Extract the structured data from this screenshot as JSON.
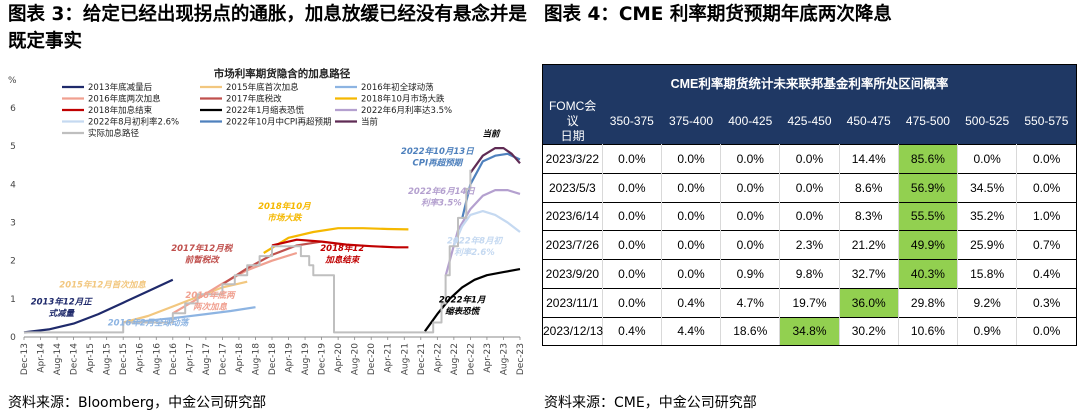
{
  "left_title": "图表 3：给定已经出现拐点的通胀，加息放缓已经没有悬念并是既定事实",
  "right_title": "图表 4：CME 利率期货预期年底两次降息",
  "left_source": "资料来源：Bloomberg，中金公司研究部",
  "right_source": "资料来源：CME，中金公司研究部",
  "chart_data": [
    {
      "type": "line",
      "title": "市场利率期货隐含的加息路径",
      "ylabel": "%",
      "ylim": [
        0,
        6
      ],
      "yticks": [
        0,
        1,
        2,
        3,
        4,
        5,
        6
      ],
      "xlim": [
        "2013-12",
        "2023-12"
      ],
      "xticks": [
        "Dec-13",
        "Apr-14",
        "Aug-14",
        "Dec-14",
        "Apr-15",
        "Aug-15",
        "Dec-15",
        "Apr-16",
        "Aug-16",
        "Dec-16",
        "Apr-17",
        "Aug-17",
        "Dec-17",
        "Apr-18",
        "Aug-18",
        "Dec-18",
        "Apr-19",
        "Aug-19",
        "Dec-19",
        "Apr-20",
        "Aug-20",
        "Dec-20",
        "Apr-21",
        "Aug-21",
        "Dec-21",
        "Apr-22",
        "Aug-22",
        "Dec-22",
        "Apr-23",
        "Aug-23",
        "Dec-23"
      ],
      "series": [
        {
          "name": "2013年底减量后",
          "color": "#1f2a6b",
          "points": [
            [
              "2013-12",
              0.12
            ],
            [
              "2014-06",
              0.2
            ],
            [
              "2014-12",
              0.35
            ],
            [
              "2015-06",
              0.6
            ],
            [
              "2015-12",
              0.9
            ],
            [
              "2016-06",
              1.2
            ],
            [
              "2016-12",
              1.5
            ]
          ]
        },
        {
          "name": "2015年底首次加息",
          "color": "#f2c77f",
          "points": [
            [
              "2015-12",
              0.38
            ],
            [
              "2016-06",
              0.55
            ],
            [
              "2016-12",
              0.8
            ],
            [
              "2017-06",
              1.05
            ],
            [
              "2017-12",
              1.3
            ],
            [
              "2018-06",
              1.45
            ]
          ]
        },
        {
          "name": "2016年初全球动荡",
          "color": "#8db4e2",
          "points": [
            [
              "2016-02",
              0.38
            ],
            [
              "2016-08",
              0.45
            ],
            [
              "2017-02",
              0.52
            ],
            [
              "2017-08",
              0.6
            ],
            [
              "2018-02",
              0.68
            ],
            [
              "2018-08",
              0.78
            ]
          ]
        },
        {
          "name": "2016年底两次加息",
          "color": "#f0a090",
          "points": [
            [
              "2016-12",
              0.62
            ],
            [
              "2017-06",
              1.0
            ],
            [
              "2017-12",
              1.4
            ],
            [
              "2018-06",
              1.75
            ],
            [
              "2018-12",
              2.0
            ],
            [
              "2019-06",
              2.2
            ]
          ]
        },
        {
          "name": "2017年底税改",
          "color": "#c0504d",
          "points": [
            [
              "2017-12",
              1.38
            ],
            [
              "2018-06",
              1.8
            ],
            [
              "2018-12",
              2.15
            ],
            [
              "2019-06",
              2.4
            ],
            [
              "2019-12",
              2.5
            ]
          ]
        },
        {
          "name": "2018年10月市场大跌",
          "color": "#f5b800",
          "points": [
            [
              "2018-10",
              2.2
            ],
            [
              "2019-04",
              2.6
            ],
            [
              "2019-10",
              2.75
            ],
            [
              "2020-04",
              2.85
            ],
            [
              "2020-10",
              2.85
            ],
            [
              "2021-04",
              2.83
            ],
            [
              "2021-09",
              2.82
            ]
          ]
        },
        {
          "name": "2018年加息结束",
          "color": "#c00000",
          "points": [
            [
              "2018-12",
              2.4
            ],
            [
              "2019-06",
              2.55
            ],
            [
              "2019-12",
              2.5
            ],
            [
              "2020-06",
              2.42
            ],
            [
              "2020-12",
              2.38
            ],
            [
              "2021-06",
              2.35
            ],
            [
              "2021-09",
              2.35
            ]
          ]
        },
        {
          "name": "2022年1月缩表恐慌",
          "color": "#000000",
          "points": [
            [
              "2022-01",
              0.15
            ],
            [
              "2022-04",
              0.6
            ],
            [
              "2022-07",
              1.0
            ],
            [
              "2022-10",
              1.3
            ],
            [
              "2023-01",
              1.5
            ],
            [
              "2023-04",
              1.62
            ],
            [
              "2023-08",
              1.7
            ],
            [
              "2023-12",
              1.78
            ]
          ]
        },
        {
          "name": "2022年6月利率达3.5%",
          "color": "#b4a0cf",
          "points": [
            [
              "2022-06",
              1.6
            ],
            [
              "2022-09",
              2.8
            ],
            [
              "2022-12",
              3.35
            ],
            [
              "2023-03",
              3.7
            ],
            [
              "2023-06",
              3.85
            ],
            [
              "2023-09",
              3.85
            ],
            [
              "2023-12",
              3.75
            ]
          ]
        },
        {
          "name": "2022年8月初利率2.6%",
          "color": "#c5d9f1",
          "points": [
            [
              "2022-08",
              2.4
            ],
            [
              "2022-10",
              2.9
            ],
            [
              "2022-12",
              3.2
            ],
            [
              "2023-03",
              3.3
            ],
            [
              "2023-06",
              3.2
            ],
            [
              "2023-09",
              3.0
            ],
            [
              "2023-12",
              2.75
            ]
          ]
        },
        {
          "name": "2022年10月中CPI再超预期",
          "color": "#4f81bd",
          "points": [
            [
              "2022-10",
              3.1
            ],
            [
              "2022-12",
              4.0
            ],
            [
              "2023-03",
              4.6
            ],
            [
              "2023-06",
              4.75
            ],
            [
              "2023-09",
              4.8
            ],
            [
              "2023-12",
              4.65
            ]
          ]
        },
        {
          "name": "当前",
          "color": "#5f2b54",
          "points": [
            [
              "2022-12",
              4.3
            ],
            [
              "2023-03",
              4.75
            ],
            [
              "2023-06",
              4.95
            ],
            [
              "2023-08",
              4.95
            ],
            [
              "2023-10",
              4.8
            ],
            [
              "2023-12",
              4.55
            ]
          ]
        },
        {
          "name": "实际加息路径",
          "color": "#bfbfbf",
          "step": true,
          "points": [
            [
              "2013-12",
              0.12
            ],
            [
              "2015-12",
              0.12
            ],
            [
              "2015-12",
              0.38
            ],
            [
              "2016-12",
              0.38
            ],
            [
              "2016-12",
              0.62
            ],
            [
              "2017-03",
              0.62
            ],
            [
              "2017-03",
              0.88
            ],
            [
              "2017-06",
              0.88
            ],
            [
              "2017-06",
              1.12
            ],
            [
              "2017-12",
              1.12
            ],
            [
              "2017-12",
              1.38
            ],
            [
              "2018-03",
              1.38
            ],
            [
              "2018-03",
              1.62
            ],
            [
              "2018-06",
              1.62
            ],
            [
              "2018-06",
              1.88
            ],
            [
              "2018-09",
              1.88
            ],
            [
              "2018-09",
              2.12
            ],
            [
              "2018-12",
              2.12
            ],
            [
              "2018-12",
              2.38
            ],
            [
              "2019-07",
              2.38
            ],
            [
              "2019-07",
              2.12
            ],
            [
              "2019-09",
              2.12
            ],
            [
              "2019-09",
              1.88
            ],
            [
              "2019-10",
              1.88
            ],
            [
              "2019-10",
              1.62
            ],
            [
              "2020-03",
              1.62
            ],
            [
              "2020-03",
              0.12
            ],
            [
              "2022-03",
              0.12
            ],
            [
              "2022-03",
              0.38
            ],
            [
              "2022-05",
              0.38
            ],
            [
              "2022-05",
              0.88
            ],
            [
              "2022-06",
              0.88
            ],
            [
              "2022-06",
              1.62
            ],
            [
              "2022-07",
              1.62
            ],
            [
              "2022-07",
              2.38
            ],
            [
              "2022-09",
              2.38
            ],
            [
              "2022-09",
              3.12
            ],
            [
              "2022-11",
              3.12
            ],
            [
              "2022-11",
              3.88
            ],
            [
              "2022-12",
              3.88
            ],
            [
              "2022-12",
              4.38
            ]
          ]
        }
      ],
      "annotations": [
        {
          "text": "当前",
          "color": "#000000",
          "x": "2023-05",
          "y": 5.25
        },
        {
          "text": "2022年10月13日",
          "color": "#4f81bd",
          "x": "2022-04",
          "y": 4.8
        },
        {
          "text": "CPI再超预期",
          "color": "#4f81bd",
          "x": "2022-04",
          "y": 4.5
        },
        {
          "text": "2018年10月",
          "color": "#f5b800",
          "x": "2019-03",
          "y": 3.35
        },
        {
          "text": "市场大跌",
          "color": "#f5b800",
          "x": "2019-03",
          "y": 3.05
        },
        {
          "text": "2022年6月14日",
          "color": "#b4a0cf",
          "x": "2022-05",
          "y": 3.75
        },
        {
          "text": "利率3.5%",
          "color": "#b4a0cf",
          "x": "2022-05",
          "y": 3.45
        },
        {
          "text": "2022年8月初",
          "color": "#c5d9f1",
          "x": "2023-01",
          "y": 2.45
        },
        {
          "text": "利率2.6%",
          "color": "#c5d9f1",
          "x": "2023-01",
          "y": 2.15
        },
        {
          "text": "2017年12月税",
          "color": "#c0504d",
          "x": "2017-07",
          "y": 2.25
        },
        {
          "text": "前暂税改",
          "color": "#c0504d",
          "x": "2017-07",
          "y": 1.95
        },
        {
          "text": "2018年12",
          "color": "#c00000",
          "x": "2020-05",
          "y": 2.25
        },
        {
          "text": "加息结束",
          "color": "#c00000",
          "x": "2020-05",
          "y": 1.95
        },
        {
          "text": "2015年12月首次加息",
          "color": "#f2c77f",
          "x": "2015-07",
          "y": 1.3
        },
        {
          "text": "2016年底两",
          "color": "#f0a090",
          "x": "2017-09",
          "y": 1.02
        },
        {
          "text": "两次加息",
          "color": "#f0a090",
          "x": "2017-09",
          "y": 0.72
        },
        {
          "text": "2013年12月正",
          "color": "#1f2a6b",
          "x": "2014-09",
          "y": 0.85
        },
        {
          "text": "式减量",
          "color": "#1f2a6b",
          "x": "2014-09",
          "y": 0.55
        },
        {
          "text": "2016年2月全球动荡",
          "color": "#8db4e2",
          "x": "2016-06",
          "y": 0.3
        },
        {
          "text": "2022年1月",
          "color": "#000000",
          "x": "2022-10",
          "y": 0.9
        },
        {
          "text": "缩表恐慌",
          "color": "#000000",
          "x": "2022-10",
          "y": 0.6
        }
      ]
    },
    {
      "type": "table",
      "title": "CME利率期货统计未来联邦基金利率所处区间概率",
      "header_first": [
        "FOMC会议",
        "日期"
      ],
      "columns": [
        "350-375",
        "375-400",
        "400-425",
        "425-450",
        "450-475",
        "475-500",
        "500-525",
        "550-575"
      ],
      "rows": [
        {
          "date": "2023/3/22",
          "values": [
            "0.0%",
            "0.0%",
            "0.0%",
            "0.0%",
            "14.4%",
            "85.6%",
            "0.0%",
            "0.0%"
          ],
          "highlight": 5
        },
        {
          "date": "2023/5/3",
          "values": [
            "0.0%",
            "0.0%",
            "0.0%",
            "0.0%",
            "8.6%",
            "56.9%",
            "34.5%",
            "0.0%"
          ],
          "highlight": 5
        },
        {
          "date": "2023/6/14",
          "values": [
            "0.0%",
            "0.0%",
            "0.0%",
            "0.0%",
            "8.3%",
            "55.5%",
            "35.2%",
            "1.0%"
          ],
          "highlight": 5
        },
        {
          "date": "2023/7/26",
          "values": [
            "0.0%",
            "0.0%",
            "0.0%",
            "2.3%",
            "21.2%",
            "49.9%",
            "25.9%",
            "0.7%"
          ],
          "highlight": 5
        },
        {
          "date": "2023/9/20",
          "values": [
            "0.0%",
            "0.0%",
            "0.9%",
            "9.8%",
            "32.7%",
            "40.3%",
            "15.8%",
            "0.4%"
          ],
          "highlight": 5
        },
        {
          "date": "2023/11/1",
          "values": [
            "0.0%",
            "0.4%",
            "4.7%",
            "19.7%",
            "36.0%",
            "29.8%",
            "9.2%",
            "0.3%"
          ],
          "highlight": 4
        },
        {
          "date": "2023/12/13",
          "values": [
            "0.4%",
            "4.4%",
            "18.6%",
            "34.8%",
            "30.2%",
            "10.6%",
            "0.9%",
            "0.0%"
          ],
          "highlight": 3
        }
      ],
      "highlight_color": "#92d050",
      "header_color": "#1f3864"
    }
  ]
}
